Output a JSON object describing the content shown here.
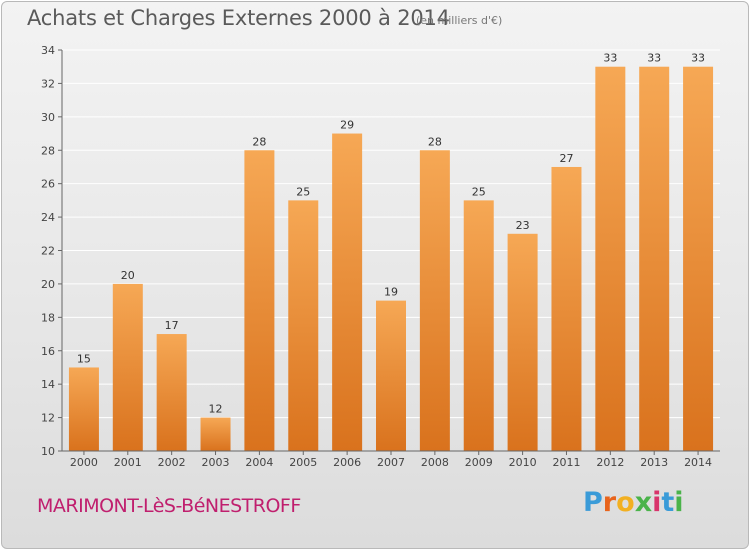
{
  "header": {
    "title": "Achats et Charges Externes 2000 à 2014",
    "subtitle": "(en milliers d'€)"
  },
  "footer": {
    "commune": "MARIMONT-LèS-BéNESTROFF",
    "logo_letters": [
      "P",
      "r",
      "o",
      "x",
      "i",
      "t",
      "i"
    ],
    "logo_colors": [
      "#3a9bd8",
      "#e8641c",
      "#f2b021",
      "#4ab34a",
      "#d8336b",
      "#3a9bd8",
      "#4ab34a"
    ]
  },
  "chart_data": {
    "type": "bar",
    "categories": [
      "2000",
      "2001",
      "2002",
      "2003",
      "2004",
      "2005",
      "2006",
      "2007",
      "2008",
      "2009",
      "2010",
      "2011",
      "2012",
      "2013",
      "2014"
    ],
    "values": [
      15,
      20,
      17,
      12,
      28,
      25,
      29,
      19,
      28,
      25,
      23,
      27,
      33,
      33,
      33
    ],
    "data_labels": [
      "15",
      "20",
      "17",
      "12",
      "28",
      "25",
      "29",
      "19",
      "28",
      "25",
      "23",
      "27",
      "33",
      "33",
      "33"
    ],
    "ylim": [
      10,
      34
    ],
    "yticks": [
      10,
      12,
      14,
      16,
      18,
      20,
      22,
      24,
      26,
      28,
      30,
      32,
      34
    ],
    "grid": true,
    "bar_color_top": "#f6a855",
    "bar_color_bottom": "#d9721d",
    "grid_color": "#ffffff"
  }
}
